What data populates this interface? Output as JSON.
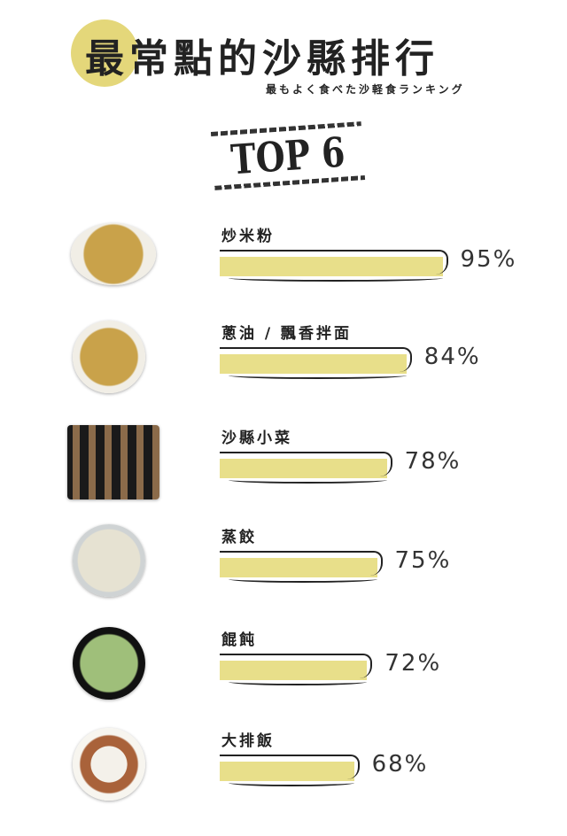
{
  "header": {
    "title_highlight": "最",
    "title_rest": "常點的沙縣排行",
    "subtitle": "最もよく食べた沙軽食ランキング",
    "badge": "TOP 6"
  },
  "colors": {
    "highlight": "#e4d77a",
    "bar": "#e8df8a",
    "ink": "#222222"
  },
  "chart_data": {
    "type": "bar",
    "orientation": "horizontal",
    "categories": [
      "炒米粉",
      "蔥油 / 飄香拌面",
      "沙縣小菜",
      "蒸餃",
      "餛飩",
      "大排飯"
    ],
    "values": [
      95,
      84,
      78,
      75,
      72,
      68
    ],
    "value_labels": [
      "95%",
      "84%",
      "78%",
      "75%",
      "72%",
      "68%"
    ],
    "unit": "%"
  }
}
